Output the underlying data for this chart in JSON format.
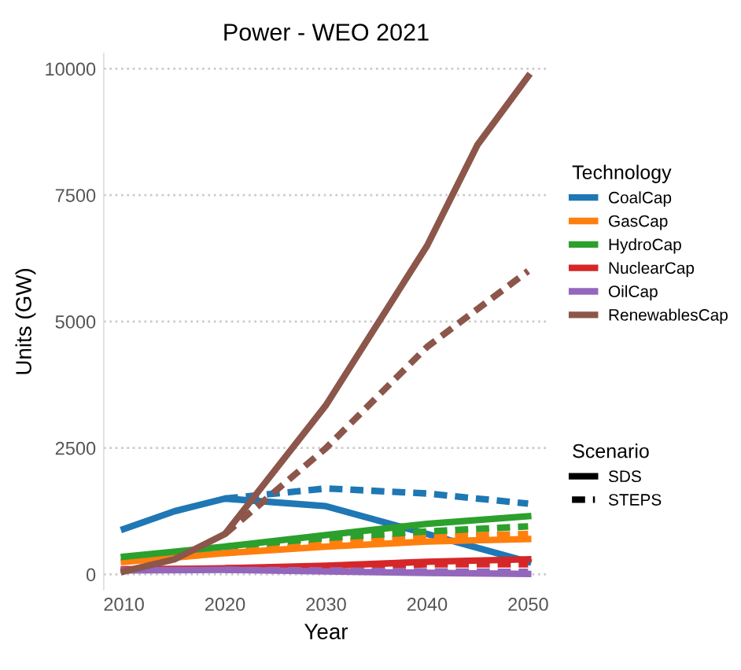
{
  "chart_data": {
    "type": "line",
    "title": "Power - WEO 2021",
    "xlabel": "Year",
    "ylabel": "Units (GW)",
    "legend_title": "Technology",
    "annotations": [
      "Scenario",
      "SDS",
      "STEPS"
    ],
    "xlim": [
      2008,
      2052
    ],
    "xticks": [
      2010,
      2020,
      2030,
      2040,
      2050
    ],
    "ylim": [
      -300,
      10300
    ],
    "yticks": [
      0,
      2500,
      5000,
      7500,
      10000
    ],
    "grid": "y",
    "legend": "right",
    "marker": "none",
    "series": [
      {
        "name": "CoalCap",
        "color": "#1f77b4",
        "line_style": "solid",
        "x": [
          2010,
          2015,
          2020,
          2030,
          2040,
          2050
        ],
        "values": [
          900,
          1250,
          1500,
          1350,
          800,
          250
        ]
      },
      {
        "color": "#1f77b4",
        "line_style": "dashed",
        "x": [
          2020,
          2030,
          2040,
          2050
        ],
        "values": [
          1500,
          1700,
          1600,
          1400
        ]
      },
      {
        "name": "GasCap",
        "color": "#ff7f0e",
        "line_style": "solid",
        "x": [
          2010,
          2020,
          2030,
          2040,
          2050
        ],
        "values": [
          250,
          420,
          550,
          650,
          700
        ]
      },
      {
        "color": "#ff7f0e",
        "line_style": "dashed",
        "x": [
          2020,
          2030,
          2040,
          2050
        ],
        "values": [
          420,
          620,
          750,
          800
        ]
      },
      {
        "name": "HydroCap",
        "color": "#2ca02c",
        "line_style": "solid",
        "x": [
          2010,
          2020,
          2030,
          2040,
          2050
        ],
        "values": [
          350,
          550,
          780,
          1000,
          1150
        ]
      },
      {
        "color": "#2ca02c",
        "line_style": "dashed",
        "x": [
          2020,
          2030,
          2040,
          2050
        ],
        "values": [
          550,
          720,
          850,
          950
        ]
      },
      {
        "name": "NuclearCap",
        "color": "#d62728",
        "line_style": "solid",
        "x": [
          2010,
          2020,
          2030,
          2040,
          2050
        ],
        "values": [
          100,
          120,
          170,
          250,
          300
        ]
      },
      {
        "color": "#d62728",
        "line_style": "dashed",
        "x": [
          2020,
          2030,
          2040,
          2050
        ],
        "values": [
          120,
          150,
          200,
          200
        ]
      },
      {
        "name": "OilCap",
        "color": "#9467bd",
        "line_style": "solid",
        "x": [
          2010,
          2020,
          2030,
          2040,
          2050
        ],
        "values": [
          80,
          90,
          60,
          30,
          10
        ]
      },
      {
        "color": "#9467bd",
        "line_style": "dashed",
        "x": [
          2020,
          2030,
          2040,
          2050
        ],
        "values": [
          90,
          80,
          60,
          50
        ]
      },
      {
        "name": "RenewablesCap",
        "color": "#8c564b",
        "line_style": "solid",
        "x": [
          2010,
          2015,
          2020,
          2030,
          2040,
          2045,
          2050
        ],
        "values": [
          60,
          300,
          800,
          3350,
          6500,
          8500,
          9850
        ]
      },
      {
        "color": "#8c564b",
        "line_style": "dashed",
        "x": [
          2020,
          2030,
          2040,
          2050
        ],
        "values": [
          800,
          2500,
          4500,
          6000
        ]
      }
    ]
  }
}
